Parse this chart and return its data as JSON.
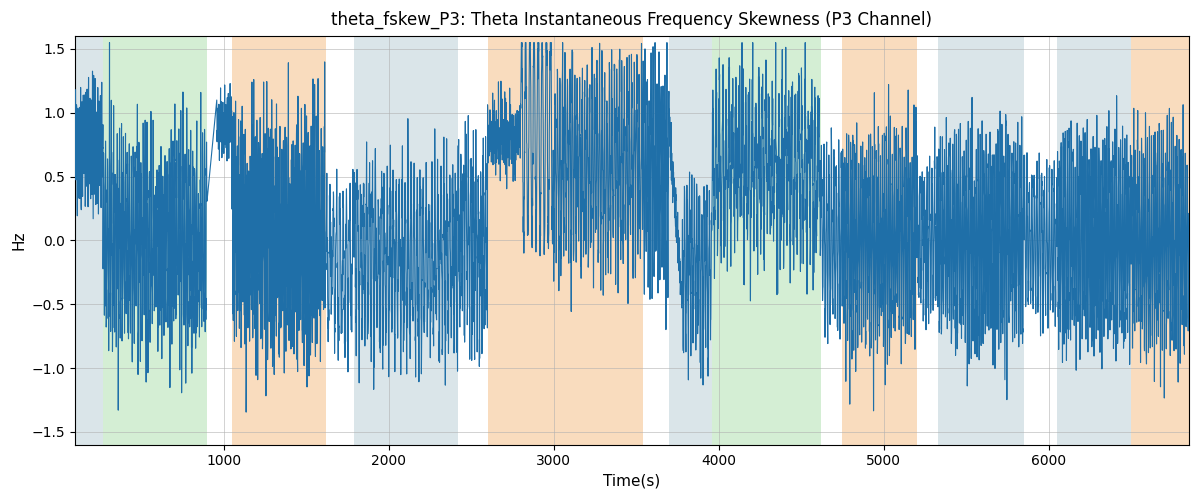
{
  "title": "theta_fskew_P3: Theta Instantaneous Frequency Skewness (P3 Channel)",
  "xlabel": "Time(s)",
  "ylabel": "Hz",
  "ylim": [
    -1.6,
    1.6
  ],
  "xlim": [
    100,
    6850
  ],
  "line_color": "#1f6fa8",
  "line_width": 0.8,
  "background_color": "#ffffff",
  "grid_color": "#b0b0b0",
  "regions": [
    {
      "start": 100,
      "end": 270,
      "color": "#aec6cf",
      "alpha": 0.45
    },
    {
      "start": 270,
      "end": 900,
      "color": "#90d490",
      "alpha": 0.38
    },
    {
      "start": 1050,
      "end": 1620,
      "color": "#f5c08a",
      "alpha": 0.55
    },
    {
      "start": 1790,
      "end": 2420,
      "color": "#aec6cf",
      "alpha": 0.45
    },
    {
      "start": 2600,
      "end": 3540,
      "color": "#f5c08a",
      "alpha": 0.55
    },
    {
      "start": 3700,
      "end": 3960,
      "color": "#aec6cf",
      "alpha": 0.45
    },
    {
      "start": 3960,
      "end": 4620,
      "color": "#90d490",
      "alpha": 0.38
    },
    {
      "start": 4750,
      "end": 5200,
      "color": "#f5c08a",
      "alpha": 0.55
    },
    {
      "start": 5330,
      "end": 5850,
      "color": "#aec6cf",
      "alpha": 0.45
    },
    {
      "start": 6050,
      "end": 6500,
      "color": "#aec6cf",
      "alpha": 0.45
    },
    {
      "start": 6500,
      "end": 6850,
      "color": "#f5c08a",
      "alpha": 0.55
    }
  ],
  "seed": 42,
  "yticks": [
    -1.5,
    -1.0,
    -0.5,
    0.0,
    0.5,
    1.0,
    1.5
  ]
}
